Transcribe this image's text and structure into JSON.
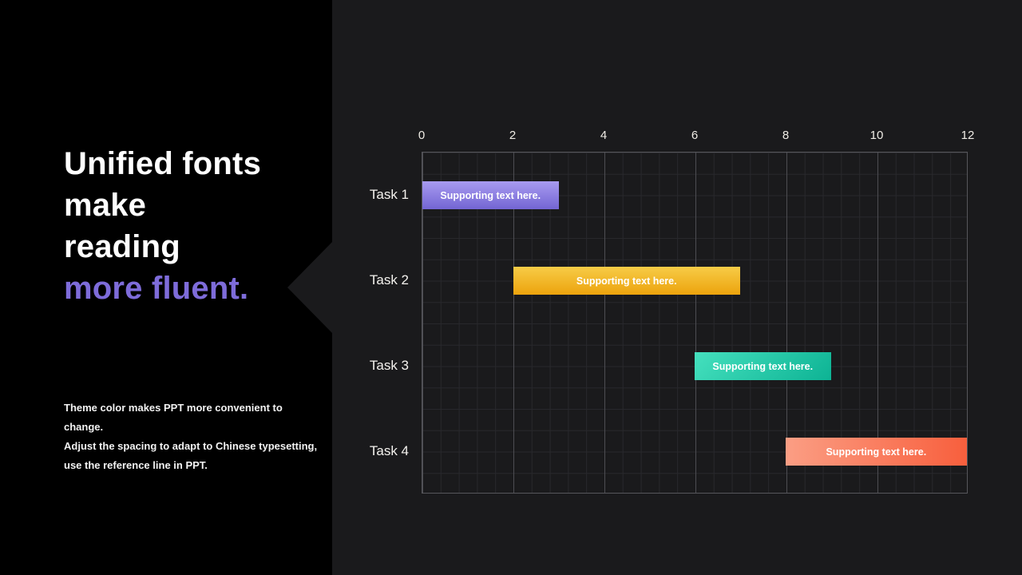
{
  "slide": {
    "background": "#1a1a1c",
    "panel_background": "#000000"
  },
  "left_panel": {
    "title_lines": [
      "Unified fonts",
      "make",
      "reading"
    ],
    "title_accent": "more fluent.",
    "accent_color": "#7e6cda",
    "body_lines": [
      "Theme color makes PPT more convenient to",
      "change.",
      "Adjust the spacing to adapt to Chinese typesetting,",
      "use the reference line in PPT."
    ]
  },
  "chart_data": {
    "type": "bar",
    "variant": "gantt",
    "title": "",
    "xlabel": "",
    "ylabel": "",
    "xlim": [
      0,
      12
    ],
    "x_ticks": [
      0,
      2,
      4,
      6,
      8,
      10,
      12
    ],
    "x_minor_unit": 0.4,
    "grid": true,
    "legend": false,
    "categories": [
      "Task 1",
      "Task 2",
      "Task 3",
      "Task 4"
    ],
    "bars": [
      {
        "task": "Task 1",
        "start": 0,
        "end": 3,
        "label": "Supporting text here.",
        "color_from": "#a89bf0",
        "color_to": "#7365d3",
        "direction": "180deg"
      },
      {
        "task": "Task 2",
        "start": 2,
        "end": 7,
        "label": "Supporting text here.",
        "color_from": "#f7cc47",
        "color_to": "#eca30d",
        "direction": "180deg"
      },
      {
        "task": "Task 3",
        "start": 6,
        "end": 9,
        "label": "Supporting text here.",
        "color_from": "#45e0be",
        "color_to": "#0db394",
        "direction": "135deg"
      },
      {
        "task": "Task 4",
        "start": 8,
        "end": 12,
        "label": "Supporting text here.",
        "color_from": "#fb9e84",
        "color_to": "#f85f3d",
        "direction": "90deg"
      }
    ]
  }
}
